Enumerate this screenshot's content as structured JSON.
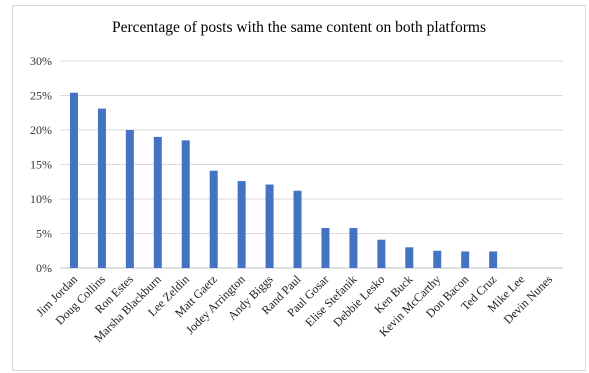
{
  "chart_data": {
    "type": "bar",
    "title": "Percentage of posts with the same content on both platforms",
    "xlabel": "",
    "ylabel": "",
    "ylim": [
      0,
      30
    ],
    "yticks": [
      "0%",
      "5%",
      "10%",
      "15%",
      "20%",
      "25%",
      "30%"
    ],
    "grid": true,
    "legend": "none",
    "bar_color": "#4472c4",
    "categories": [
      "Jim Jordan",
      "Doug Collins",
      "Ron Estes",
      "Marsha Blackburn",
      "Lee Zeldin",
      "Matt Gaetz",
      "Jodey Arrington",
      "Andy Biggs",
      "Rand Paul",
      "Paul Gosar",
      "Elise Stefanik",
      "Debbie Lesko",
      "Ken Buck",
      "Kevin McCarthy",
      "Don Bacon",
      "Ted Cruz",
      "Mike Lee",
      "Devin Nunes"
    ],
    "values": [
      25.4,
      23.1,
      20.0,
      19.0,
      18.5,
      14.1,
      12.6,
      12.1,
      11.2,
      5.8,
      5.8,
      4.1,
      3.0,
      2.5,
      2.4,
      2.4,
      0,
      0
    ]
  }
}
